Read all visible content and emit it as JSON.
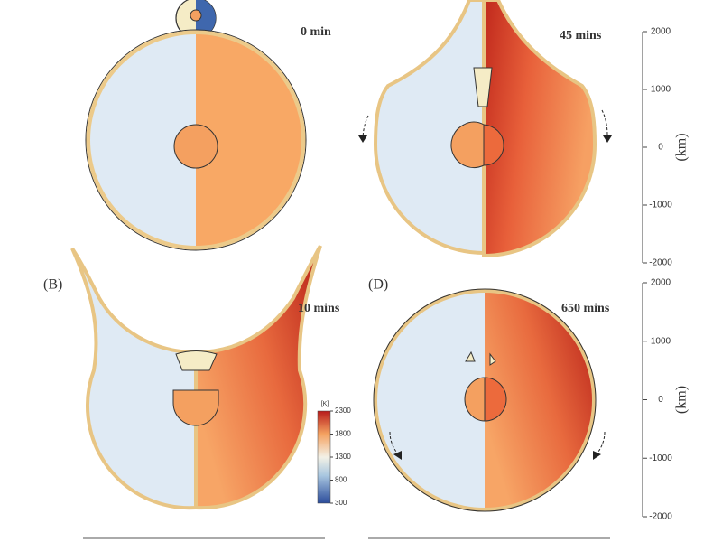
{
  "figure": {
    "panels": [
      {
        "time": "0 min"
      },
      {
        "time": "45 mins"
      },
      {
        "label": "(B)",
        "time": "10 mins"
      },
      {
        "label": "(D)",
        "time": "650 mins"
      }
    ],
    "axes": [
      {
        "label": "(km)",
        "ylim": [
          -2000,
          2000
        ],
        "yticks": [
          2000,
          1000,
          0,
          -1000,
          -2000
        ]
      },
      {
        "label": "(km)",
        "ylim": [
          -2000,
          2000
        ],
        "yticks": [
          2000,
          1000,
          0,
          -1000,
          -2000
        ]
      }
    ],
    "colorbar": {
      "label": "[K]",
      "range": [
        300,
        2300
      ],
      "ticks": [
        2300,
        1800,
        1300,
        800,
        300
      ]
    }
  }
}
